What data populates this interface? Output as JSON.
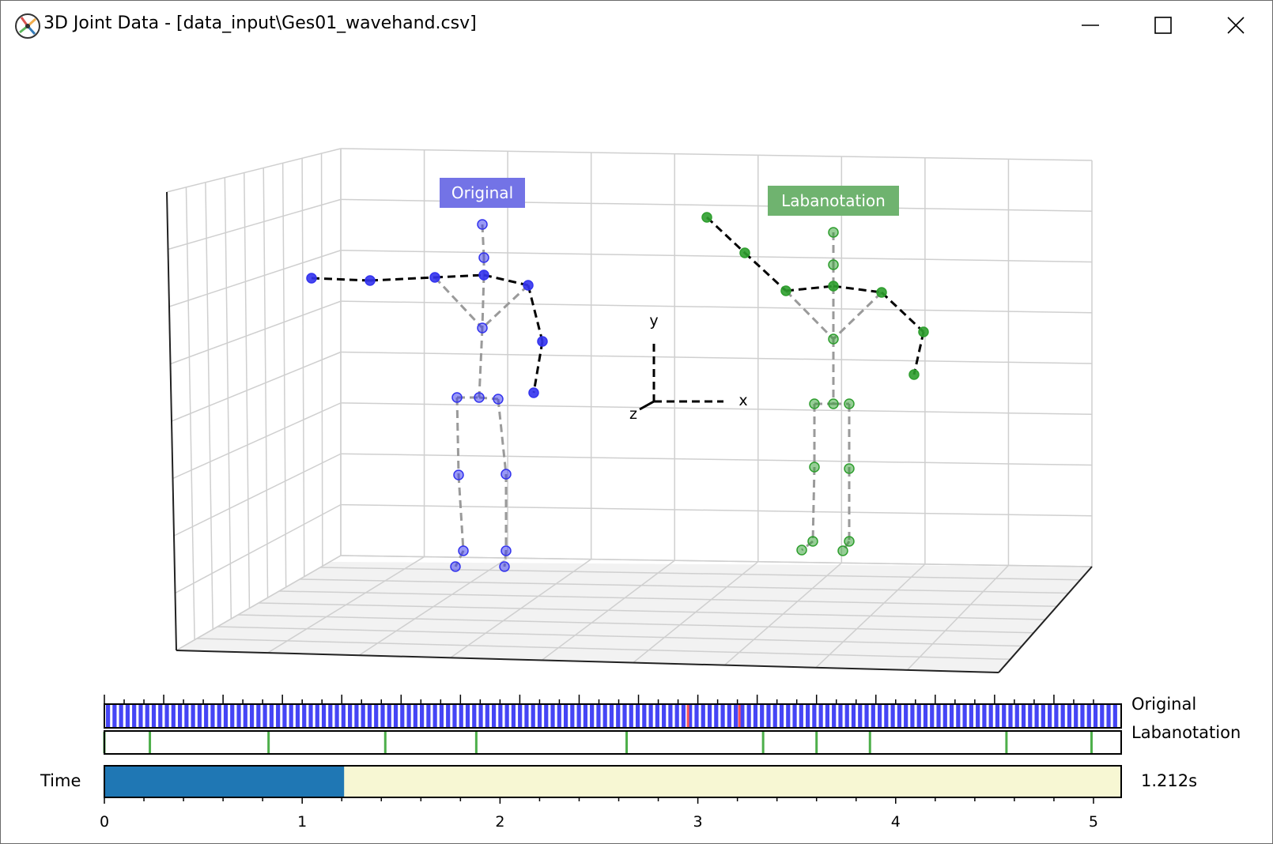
{
  "window": {
    "title": "3D Joint Data - [data_input\\Ges01_wavehand.csv]",
    "buttons": [
      "minimize",
      "maximize",
      "close"
    ]
  },
  "plot3d": {
    "labels": {
      "original": "Original",
      "labanotation": "Labanotation"
    },
    "colors": {
      "original": "#3333ee",
      "labanotation": "#2e9e2e",
      "original_label_bg": "#7373e6",
      "laban_label_bg": "#6fb36f"
    },
    "axes": {
      "x": "x",
      "y": "y",
      "z": "z"
    }
  },
  "timeline": {
    "original_label": "Original",
    "labanotation_label": "Labanotation",
    "time_label": "Time",
    "time_value": "1.212s",
    "time_progress_seconds": 1.212,
    "time_max_seconds": 5.14,
    "ticks": [
      "0",
      "1",
      "2",
      "3",
      "4",
      "5"
    ],
    "keyframes_seconds": [
      0.0,
      0.23,
      0.83,
      1.42,
      1.88,
      2.64,
      3.33,
      3.6,
      3.87,
      4.56,
      4.99
    ],
    "highlight_frames_seconds": [
      2.95,
      3.21
    ],
    "colors": {
      "progress": "#1f77b4",
      "remaining": "#f7f7d3",
      "keyframe": "#4daf4a",
      "original_frames": "#4545f5",
      "highlight": "#ff5555"
    }
  }
}
